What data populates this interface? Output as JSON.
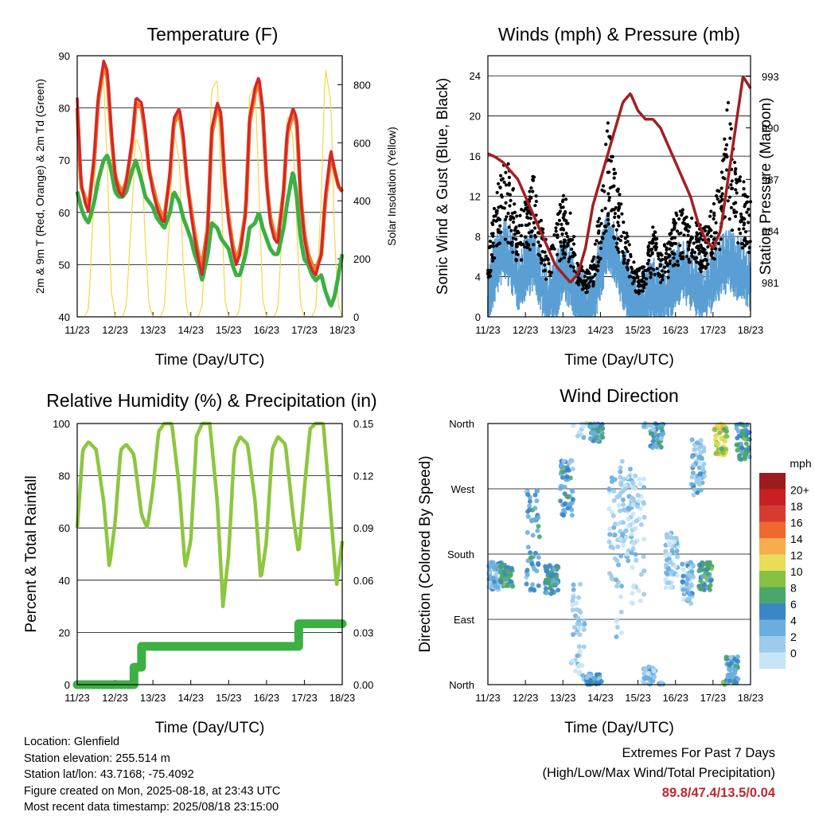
{
  "x_ticks": [
    "11/23",
    "12/23",
    "13/23",
    "14/23",
    "15/23",
    "16/23",
    "17/23",
    "18/23"
  ],
  "xlabel": "Time (Day/UTC)",
  "chart_data": [
    {
      "type": "line",
      "title": "Temperature (F)",
      "xlabel": "Time (Day/UTC)",
      "ylabel": "2m & 9m T (Red, Orange) & 2m Td (Green)",
      "y2label": "Solar Insolation (Yellow)",
      "ylim": [
        40,
        90
      ],
      "yticks": [
        40,
        50,
        60,
        70,
        80,
        90
      ],
      "y2lim": [
        0,
        900
      ],
      "y2ticks": [
        0,
        200,
        400,
        600,
        800
      ],
      "x_day_points": [
        0,
        0.1,
        0.2,
        0.3,
        0.45,
        0.55,
        0.7,
        0.8,
        0.9,
        1.0,
        1.1,
        1.2,
        1.3,
        1.45,
        1.55,
        1.7,
        1.8,
        1.9,
        2.0,
        2.1,
        2.2,
        2.3,
        2.45,
        2.55,
        2.7,
        2.8,
        2.9,
        3.0,
        3.1,
        3.2,
        3.3,
        3.45,
        3.55,
        3.7,
        3.8,
        3.9,
        4.0,
        4.1,
        4.2,
        4.3,
        4.45,
        4.55,
        4.7,
        4.8,
        4.9,
        5.0,
        5.1,
        5.2,
        5.3,
        5.45,
        5.55,
        5.7,
        5.8,
        5.9,
        6.0,
        6.1,
        6.2,
        6.3,
        6.45,
        6.55,
        6.7,
        6.8,
        6.9,
        7.0
      ],
      "series": [
        {
          "color": "#d62728",
          "values": [
            82,
            66,
            62,
            60,
            71,
            82,
            89,
            87,
            76,
            67,
            64,
            63,
            66,
            74,
            82,
            81,
            76,
            68,
            64,
            61,
            59,
            58,
            68,
            78,
            80,
            75,
            66,
            60,
            55,
            51,
            48,
            57,
            76,
            81,
            79,
            66,
            58,
            53,
            50,
            52,
            60,
            78,
            84,
            86,
            80,
            66,
            58,
            55,
            54,
            64,
            76,
            80,
            78,
            63,
            55,
            51,
            49,
            48,
            52,
            63,
            72,
            68,
            65,
            64
          ]
        },
        {
          "color": "#f07c27",
          "values": [
            80,
            65,
            63,
            61,
            70,
            81,
            88,
            86,
            75,
            67,
            65,
            64,
            66,
            73,
            81,
            80,
            75,
            68,
            65,
            62,
            60,
            59,
            67,
            77,
            79,
            74,
            66,
            61,
            56,
            52,
            50,
            57,
            75,
            80,
            78,
            66,
            59,
            54,
            51,
            53,
            60,
            77,
            83,
            85,
            79,
            66,
            59,
            56,
            55,
            64,
            75,
            79,
            77,
            63,
            56,
            52,
            50,
            49,
            52,
            62,
            71,
            68,
            65,
            64
          ]
        },
        {
          "color": "#3cb043",
          "values": [
            64,
            61,
            59,
            58,
            62,
            66,
            70,
            71,
            68,
            64,
            63,
            63,
            64,
            68,
            70,
            66,
            63,
            62,
            61,
            59,
            58,
            57,
            60,
            64,
            62,
            59,
            57,
            55,
            52,
            50,
            47,
            52,
            58,
            57,
            55,
            54,
            53,
            50,
            48,
            48,
            52,
            57,
            58,
            60,
            57,
            55,
            53,
            52,
            52,
            57,
            62,
            68,
            63,
            55,
            51,
            50,
            48,
            47,
            48,
            45,
            42,
            44,
            48,
            52
          ]
        },
        {
          "color": "#f5d547",
          "axis": "y2",
          "values": [
            0,
            0,
            0,
            30,
            420,
            760,
            810,
            500,
            90,
            0,
            0,
            0,
            40,
            380,
            620,
            560,
            260,
            40,
            0,
            0,
            0,
            30,
            360,
            640,
            540,
            180,
            20,
            0,
            0,
            0,
            40,
            420,
            780,
            820,
            460,
            60,
            0,
            0,
            0,
            30,
            400,
            760,
            800,
            440,
            60,
            0,
            0,
            0,
            30,
            380,
            700,
            620,
            300,
            40,
            0,
            0,
            0,
            30,
            420,
            860,
            740,
            260,
            40,
            0
          ]
        }
      ]
    },
    {
      "type": "scatter",
      "title": "Winds (mph) & Pressure (mb)",
      "xlabel": "Time (Day/UTC)",
      "ylabel": "Sonic Wind & Gust (Blue, Black)",
      "y2label": "Station Pressure (Maroon)",
      "ylim": [
        0,
        26
      ],
      "yticks": [
        0,
        4,
        8,
        12,
        16,
        20,
        24
      ],
      "y2lim": [
        979,
        994.2
      ],
      "y2ticks": [
        981,
        984,
        987,
        990,
        993
      ],
      "x_day_points": [
        0,
        0.2,
        0.4,
        0.6,
        0.8,
        1.0,
        1.2,
        1.4,
        1.6,
        1.8,
        2.0,
        2.2,
        2.4,
        2.6,
        2.8,
        3.0,
        3.2,
        3.4,
        3.6,
        3.8,
        4.0,
        4.2,
        4.4,
        4.6,
        4.8,
        5.0,
        5.2,
        5.4,
        5.6,
        5.8,
        6.0,
        6.2,
        6.4,
        6.6,
        6.8,
        7.0
      ],
      "series": [
        {
          "color": "#5a9fd4",
          "kind": "wind",
          "values": [
            3,
            6,
            8,
            7,
            5,
            6,
            7,
            5,
            3,
            4,
            6,
            5,
            3,
            2,
            3,
            6,
            9,
            7,
            5,
            3,
            2,
            3,
            4,
            3,
            4,
            5,
            6,
            5,
            4,
            4,
            5,
            6,
            7,
            6,
            6,
            5
          ]
        },
        {
          "color": "#000000",
          "kind": "gust",
          "values": [
            5,
            11,
            14,
            13,
            9,
            10,
            13,
            9,
            6,
            8,
            11,
            9,
            5,
            4,
            5,
            10,
            17,
            13,
            9,
            6,
            4,
            5,
            8,
            6,
            7,
            9,
            10,
            9,
            8,
            8,
            10,
            12,
            19,
            13,
            12,
            10
          ]
        },
        {
          "color": "#a31f22",
          "axis": "y2",
          "values": [
            988.5,
            988.3,
            988.0,
            987.5,
            987.0,
            986.0,
            985.0,
            984.0,
            983.0,
            982.0,
            981.5,
            981.0,
            981.5,
            983.0,
            985.5,
            987.0,
            988.5,
            990.0,
            991.5,
            992.0,
            991.0,
            990.5,
            990.5,
            990.0,
            989.0,
            988.0,
            987.0,
            986.0,
            984.5,
            983.5,
            983.0,
            984.0,
            987.0,
            990.0,
            993.0,
            992.3
          ]
        }
      ]
    },
    {
      "type": "line",
      "title": "Relative Humidity (%) & Precipitation (in)",
      "xlabel": "Time (Day/UTC)",
      "ylabel": "Percent & Total Rainfall",
      "ylim": [
        0,
        100
      ],
      "yticks": [
        0,
        20,
        40,
        60,
        80,
        100
      ],
      "y2lim": [
        0,
        0.15
      ],
      "y2ticks": [
        "0.00",
        "0.03",
        "0.06",
        "0.09",
        "0.12",
        "0.15"
      ],
      "x_day_points": [
        0,
        0.15,
        0.3,
        0.5,
        0.7,
        0.85,
        1.0,
        1.15,
        1.3,
        1.5,
        1.7,
        1.85,
        2.0,
        2.15,
        2.3,
        2.5,
        2.7,
        2.85,
        3.0,
        3.15,
        3.3,
        3.5,
        3.7,
        3.85,
        4.0,
        4.15,
        4.3,
        4.5,
        4.7,
        4.85,
        5.0,
        5.15,
        5.3,
        5.5,
        5.7,
        5.85,
        6.0,
        6.15,
        6.3,
        6.5,
        6.7,
        6.85,
        7.0
      ],
      "series": [
        {
          "color": "#8dc63f",
          "values": [
            60,
            90,
            93,
            90,
            70,
            45,
            62,
            90,
            92,
            88,
            65,
            60,
            75,
            97,
            100,
            100,
            75,
            45,
            55,
            95,
            100,
            100,
            70,
            30,
            50,
            90,
            95,
            92,
            70,
            40,
            55,
            90,
            95,
            92,
            65,
            50,
            75,
            98,
            100,
            100,
            65,
            38,
            55
          ]
        },
        {
          "color": "#3cb043",
          "axis": "y2",
          "kind": "step",
          "values": [
            0,
            0,
            0,
            0,
            0,
            0,
            0,
            0,
            0,
            0.01,
            0.022,
            0.022,
            0.022,
            0.022,
            0.022,
            0.022,
            0.022,
            0.022,
            0.022,
            0.022,
            0.022,
            0.022,
            0.022,
            0.022,
            0.022,
            0.022,
            0.022,
            0.022,
            0.022,
            0.022,
            0.022,
            0.022,
            0.022,
            0.022,
            0.022,
            0.035,
            0.035,
            0.035,
            0.035,
            0.035,
            0.035,
            0.035,
            0.035
          ]
        }
      ]
    },
    {
      "type": "scatter",
      "title": "Wind Direction",
      "xlabel": "Time (Day/UTC)",
      "ylabel": "Direction (Colored By Speed)",
      "yticks": [
        "North",
        "East",
        "South",
        "West",
        "North"
      ],
      "ylim": [
        0,
        360
      ],
      "colorbar_title": "mph",
      "colorbar_labels": [
        "0",
        "2",
        "4",
        "6",
        "8",
        "10",
        "12",
        "14",
        "16",
        "18",
        "20+"
      ],
      "colorbar_colors": [
        "#c6e5f7",
        "#9ccbeb",
        "#6aaede",
        "#3b86c6",
        "#4aa66a",
        "#86c241",
        "#e8dc58",
        "#f6ad4b",
        "#ee6930",
        "#d83a2f",
        "#c81f25",
        "#9c1b1f"
      ],
      "clusters": [
        {
          "day": 0.2,
          "dir": 150,
          "spread": 20,
          "speed": 5
        },
        {
          "day": 0.5,
          "dir": 150,
          "spread": 15,
          "speed": 8
        },
        {
          "day": 1.2,
          "dir": 200,
          "spread": 70,
          "speed": 6
        },
        {
          "day": 1.7,
          "dir": 145,
          "spread": 20,
          "speed": 7
        },
        {
          "day": 2.1,
          "dir": 270,
          "spread": 40,
          "speed": 6
        },
        {
          "day": 2.4,
          "dir": 60,
          "spread": 80,
          "speed": 3
        },
        {
          "day": 2.8,
          "dir": 5,
          "spread": 10,
          "speed": 5
        },
        {
          "day": 2.9,
          "dir": 350,
          "spread": 15,
          "speed": 7
        },
        {
          "day": 3.4,
          "dir": 180,
          "spread": 120,
          "speed": 3
        },
        {
          "day": 3.7,
          "dir": 240,
          "spread": 70,
          "speed": 3
        },
        {
          "day": 4.0,
          "dir": 200,
          "spread": 90,
          "speed": 2
        },
        {
          "day": 4.3,
          "dir": 10,
          "spread": 15,
          "speed": 4
        },
        {
          "day": 4.5,
          "dir": 345,
          "spread": 20,
          "speed": 6
        },
        {
          "day": 4.9,
          "dir": 170,
          "spread": 40,
          "speed": 3
        },
        {
          "day": 5.3,
          "dir": 140,
          "spread": 30,
          "speed": 4
        },
        {
          "day": 5.6,
          "dir": 300,
          "spread": 40,
          "speed": 4
        },
        {
          "day": 5.8,
          "dir": 150,
          "spread": 20,
          "speed": 8
        },
        {
          "day": 6.2,
          "dir": 340,
          "spread": 25,
          "speed": 12
        },
        {
          "day": 6.5,
          "dir": 20,
          "spread": 20,
          "speed": 6
        },
        {
          "day": 6.8,
          "dir": 335,
          "spread": 25,
          "speed": 8
        }
      ]
    }
  ],
  "footer": {
    "location": "Location: Glenfield",
    "elevation": "Station elevation: 255.514 m",
    "latlon": "Station lat/lon: 43.7168; -75.4092",
    "created": "Figure created on Mon, 2025-08-18, at 23:43 UTC",
    "timestamp": "Most recent data timestamp: 2025/08/18 23:15:00"
  },
  "extremes": {
    "title": "Extremes For Past 7 Days",
    "subtitle": "(High/Low/Max Wind/Total Precipitation)",
    "values": "89.8/47.4/13.5/0.04"
  }
}
